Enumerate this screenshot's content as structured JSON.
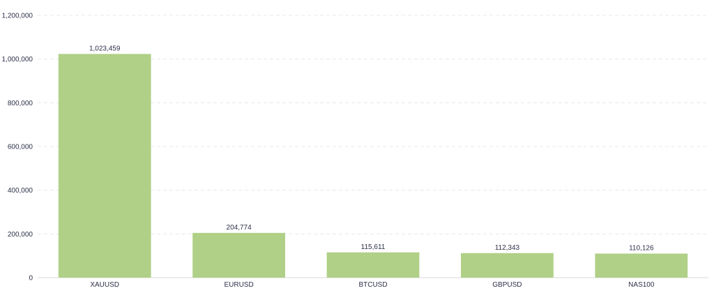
{
  "chart_data": {
    "type": "bar",
    "categories": [
      "XAUUSD",
      "EURUSD",
      "BTCUSD",
      "GBPUSD",
      "NAS100"
    ],
    "values": [
      1023459,
      204774,
      115611,
      112343,
      110126
    ],
    "value_labels": [
      "1,023,459",
      "204,774",
      "115,611",
      "112,343",
      "110,126"
    ],
    "title": "",
    "xlabel": "",
    "ylabel": "",
    "ylim": [
      0,
      1200000
    ],
    "yticks": [
      0,
      200000,
      400000,
      600000,
      800000,
      1000000,
      1200000
    ],
    "ytick_labels": [
      "0",
      "200,000",
      "400,000",
      "600,000",
      "800,000",
      "1,000,000",
      "1,200,000"
    ],
    "grid": true,
    "legend": "none",
    "bar_color": "#b0d087"
  }
}
